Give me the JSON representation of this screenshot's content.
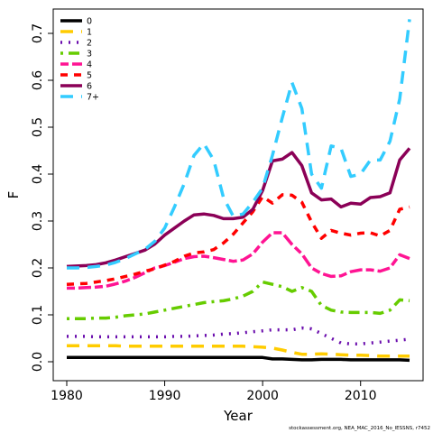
{
  "chart_data": {
    "type": "line",
    "xlabel": "Year",
    "ylabel": "F",
    "xlim": [
      1980,
      2015
    ],
    "ylim": [
      0,
      0.7
    ],
    "x_ticks": [
      1980,
      1990,
      2000,
      2010
    ],
    "y_ticks": [
      "0.0",
      "0.1",
      "0.2",
      "0.3",
      "0.4",
      "0.5",
      "0.6",
      "0.7"
    ],
    "grid": false,
    "legend_position": "top-left",
    "x": [
      1980,
      1981,
      1982,
      1983,
      1984,
      1985,
      1986,
      1987,
      1988,
      1989,
      1990,
      1991,
      1992,
      1993,
      1994,
      1995,
      1996,
      1997,
      1998,
      1999,
      2000,
      2001,
      2002,
      2003,
      2004,
      2005,
      2006,
      2007,
      2008,
      2009,
      2010,
      2011,
      2012,
      2013,
      2014,
      2015
    ],
    "series": [
      {
        "name": "0",
        "color": "#000000",
        "dash": "solid",
        "values": [
          0.009,
          0.009,
          0.009,
          0.009,
          0.009,
          0.009,
          0.009,
          0.009,
          0.009,
          0.009,
          0.009,
          0.009,
          0.009,
          0.009,
          0.009,
          0.009,
          0.009,
          0.009,
          0.009,
          0.009,
          0.009,
          0.006,
          0.006,
          0.005,
          0.004,
          0.004,
          0.005,
          0.005,
          0.005,
          0.004,
          0.004,
          0.004,
          0.004,
          0.004,
          0.004,
          0.003
        ]
      },
      {
        "name": "1",
        "color": "#FFCC00",
        "dash": "long",
        "values": [
          0.034,
          0.034,
          0.034,
          0.034,
          0.034,
          0.034,
          0.033,
          0.033,
          0.033,
          0.033,
          0.033,
          0.033,
          0.033,
          0.033,
          0.033,
          0.033,
          0.033,
          0.033,
          0.033,
          0.032,
          0.031,
          0.029,
          0.025,
          0.02,
          0.016,
          0.016,
          0.017,
          0.016,
          0.015,
          0.014,
          0.014,
          0.013,
          0.012,
          0.012,
          0.012,
          0.012
        ]
      },
      {
        "name": "2",
        "color": "#6A0DAD",
        "dash": "dot",
        "values": [
          0.054,
          0.054,
          0.054,
          0.053,
          0.053,
          0.053,
          0.053,
          0.053,
          0.053,
          0.053,
          0.053,
          0.054,
          0.054,
          0.055,
          0.056,
          0.057,
          0.059,
          0.06,
          0.062,
          0.064,
          0.066,
          0.068,
          0.068,
          0.068,
          0.072,
          0.07,
          0.06,
          0.05,
          0.04,
          0.038,
          0.038,
          0.04,
          0.042,
          0.044,
          0.046,
          0.048
        ]
      },
      {
        "name": "3",
        "color": "#66CC00",
        "dash": "dashdot",
        "values": [
          0.092,
          0.092,
          0.092,
          0.093,
          0.093,
          0.095,
          0.098,
          0.1,
          0.102,
          0.106,
          0.11,
          0.114,
          0.118,
          0.122,
          0.126,
          0.128,
          0.13,
          0.134,
          0.14,
          0.15,
          0.17,
          0.165,
          0.16,
          0.15,
          0.158,
          0.15,
          0.12,
          0.11,
          0.106,
          0.105,
          0.105,
          0.105,
          0.103,
          0.11,
          0.132,
          0.13
        ]
      },
      {
        "name": "4",
        "color": "#FF1493",
        "dash": "twodash",
        "values": [
          0.157,
          0.157,
          0.158,
          0.159,
          0.161,
          0.166,
          0.172,
          0.18,
          0.19,
          0.2,
          0.205,
          0.212,
          0.22,
          0.224,
          0.225,
          0.222,
          0.218,
          0.214,
          0.217,
          0.23,
          0.255,
          0.275,
          0.275,
          0.25,
          0.23,
          0.2,
          0.188,
          0.182,
          0.183,
          0.192,
          0.196,
          0.196,
          0.193,
          0.2,
          0.228,
          0.22
        ]
      },
      {
        "name": "5",
        "color": "#FF0000",
        "dash": "dash",
        "values": [
          0.165,
          0.166,
          0.167,
          0.17,
          0.173,
          0.177,
          0.182,
          0.187,
          0.193,
          0.198,
          0.206,
          0.214,
          0.225,
          0.232,
          0.234,
          0.239,
          0.253,
          0.272,
          0.296,
          0.32,
          0.352,
          0.338,
          0.356,
          0.355,
          0.34,
          0.298,
          0.263,
          0.28,
          0.274,
          0.27,
          0.274,
          0.275,
          0.268,
          0.28,
          0.325,
          0.33
        ]
      },
      {
        "name": "6",
        "color": "#8B0057",
        "dash": "solid",
        "values": [
          0.203,
          0.204,
          0.205,
          0.207,
          0.211,
          0.217,
          0.224,
          0.231,
          0.238,
          0.251,
          0.27,
          0.285,
          0.3,
          0.313,
          0.315,
          0.312,
          0.305,
          0.305,
          0.308,
          0.325,
          0.365,
          0.428,
          0.432,
          0.446,
          0.418,
          0.36,
          0.345,
          0.347,
          0.33,
          0.338,
          0.336,
          0.35,
          0.352,
          0.36,
          0.43,
          0.455
        ]
      },
      {
        "name": "7+",
        "color": "#33CCFF",
        "dash": "long",
        "values": [
          0.2,
          0.2,
          0.201,
          0.203,
          0.206,
          0.212,
          0.22,
          0.23,
          0.24,
          0.257,
          0.285,
          0.33,
          0.38,
          0.44,
          0.465,
          0.43,
          0.35,
          0.31,
          0.315,
          0.34,
          0.37,
          0.44,
          0.52,
          0.595,
          0.54,
          0.4,
          0.37,
          0.46,
          0.455,
          0.395,
          0.4,
          0.43,
          0.43,
          0.47,
          0.56,
          0.73
        ]
      }
    ]
  },
  "credit": "stockassessment.org, NEA_MAC_2016_No_IESSNS, r7452"
}
